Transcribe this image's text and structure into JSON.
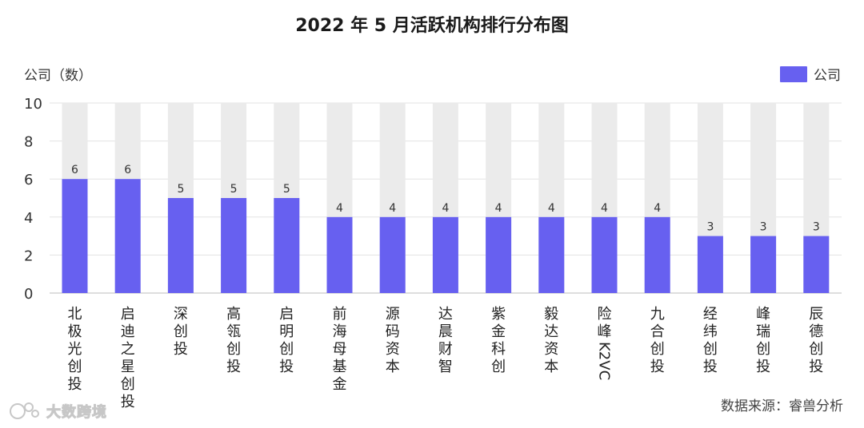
{
  "chart_data": {
    "type": "bar",
    "title": "2022 年 5 月活跃机构排行分布图",
    "ylabel": "公司（数）",
    "ylim": [
      0,
      10
    ],
    "yticks": [
      0,
      2,
      4,
      6,
      8,
      10
    ],
    "grid": true,
    "legend_position": "top-right",
    "categories": [
      "北极光创投",
      "启迪之星创投",
      "深创投",
      "高瓴创投",
      "启明创投",
      "前海母基金",
      "源码资本",
      "达晨财智",
      "紫金科创",
      "毅达资本",
      "险峰 K2VC",
      "九合创投",
      "经纬创投",
      "峰瑞创投",
      "辰德创投"
    ],
    "series": [
      {
        "name": "公司",
        "values": [
          6,
          6,
          5,
          5,
          5,
          4,
          4,
          4,
          4,
          4,
          4,
          4,
          3,
          3,
          3
        ],
        "color": "#6760f0"
      }
    ],
    "background_bar_color": "#ebebeb"
  },
  "source": "数据来源：睿兽分析",
  "watermark": "大数跨境"
}
